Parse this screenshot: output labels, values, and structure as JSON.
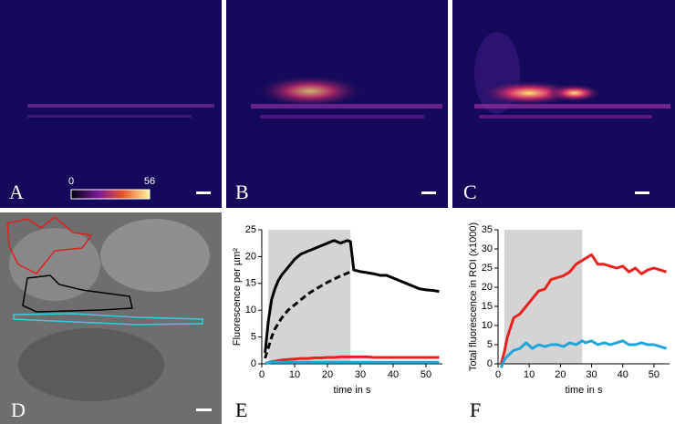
{
  "panels": {
    "a": "A",
    "b": "B",
    "c": "C",
    "d": "D",
    "e": "E",
    "f": "F"
  },
  "colorbar": {
    "min": "0",
    "max": "56"
  },
  "chart_data": [
    {
      "type": "line",
      "xlabel": "time in s",
      "ylabel": "Fluorescence per µm²",
      "xlim": [
        0,
        55
      ],
      "ylim": [
        0,
        25
      ],
      "xticks": [
        0,
        10,
        20,
        30,
        40,
        50
      ],
      "yticks": [
        0,
        5,
        10,
        15,
        20,
        25
      ],
      "shade": [
        2,
        27
      ],
      "shade_color": "#d4d4d4",
      "x": [
        1,
        2,
        3,
        4,
        5,
        6,
        8,
        10,
        12,
        14,
        16,
        18,
        20,
        22,
        24,
        26,
        27,
        28,
        30,
        32,
        34,
        36,
        38,
        40,
        42,
        44,
        46,
        48,
        50,
        52,
        54
      ],
      "series": [
        {
          "color": "#000000",
          "dash": false,
          "values": [
            2,
            8,
            12,
            14,
            15.5,
            16.5,
            18,
            19.5,
            20.5,
            21,
            21.5,
            22,
            22.5,
            23,
            22.5,
            23,
            22.8,
            17.5,
            17.2,
            17,
            16.8,
            16.5,
            16.5,
            16,
            15.5,
            15,
            14.5,
            14,
            13.8,
            13.7,
            13.5
          ]
        },
        {
          "color": "#000000",
          "dash": true,
          "values": [
            1,
            3,
            5,
            6.5,
            7.5,
            8.5,
            10,
            11,
            12,
            13,
            13.8,
            14.5,
            15.2,
            15.8,
            16.4,
            16.9,
            17.2,
            null,
            null,
            null,
            null,
            null,
            null,
            null,
            null,
            null,
            null,
            null,
            null,
            null,
            null
          ]
        },
        {
          "color": "#e8231f",
          "dash": false,
          "values": [
            0,
            0.2,
            0.4,
            0.5,
            0.6,
            0.7,
            0.8,
            0.9,
            1,
            1,
            1.1,
            1.1,
            1.2,
            1.2,
            1.3,
            1.3,
            1.3,
            1.3,
            1.3,
            1.3,
            1.2,
            1.2,
            1.2,
            1.2,
            1.2,
            1.2,
            1.2,
            1.2,
            1.2,
            1.2,
            1.2
          ]
        },
        {
          "color": "#1ea6dc",
          "dash": false,
          "values": [
            0.1,
            0.2,
            0.3,
            0.3,
            0.3,
            0.3,
            0.3,
            0.3,
            0.3,
            0.3,
            0.3,
            0.3,
            0.3,
            0.3,
            0.3,
            0.3,
            0.3,
            0.3,
            0.3,
            0.3,
            0.3,
            0.3,
            0.3,
            0.3,
            0.3,
            0.3,
            0.3,
            0.3,
            0.3,
            0.3,
            0.3
          ]
        }
      ]
    },
    {
      "type": "line",
      "xlabel": "time in s",
      "ylabel": "Total fluorescence in ROI (x1000)",
      "xlim": [
        0,
        55
      ],
      "ylim": [
        0,
        35
      ],
      "xticks": [
        0,
        10,
        20,
        30,
        40,
        50
      ],
      "yticks": [
        0,
        5,
        10,
        15,
        20,
        25,
        30,
        35
      ],
      "shade": [
        2,
        27
      ],
      "shade_color": "#d4d4d4",
      "x": [
        1,
        2,
        3,
        5,
        7,
        9,
        11,
        13,
        15,
        17,
        19,
        21,
        23,
        25,
        27,
        28,
        30,
        32,
        34,
        36,
        38,
        40,
        42,
        44,
        46,
        48,
        50,
        52,
        54
      ],
      "series": [
        {
          "color": "#e8231f",
          "dash": false,
          "values": [
            0,
            3,
            7,
            12,
            13,
            15,
            17,
            19,
            19.5,
            22,
            22.5,
            23,
            24,
            26,
            27,
            27.5,
            28.5,
            26,
            26,
            25.5,
            25,
            25.5,
            24,
            25,
            23.5,
            24.5,
            25,
            24.5,
            24
          ]
        },
        {
          "color": "#1ea6dc",
          "dash": false,
          "values": [
            -1,
            1,
            2,
            3.5,
            4,
            5.5,
            4,
            5,
            4.5,
            5,
            5,
            4.5,
            5.5,
            5,
            6,
            5.5,
            6,
            5,
            5.5,
            5,
            5.5,
            6,
            5,
            5,
            5.5,
            5,
            5,
            4.5,
            4
          ]
        }
      ]
    }
  ]
}
